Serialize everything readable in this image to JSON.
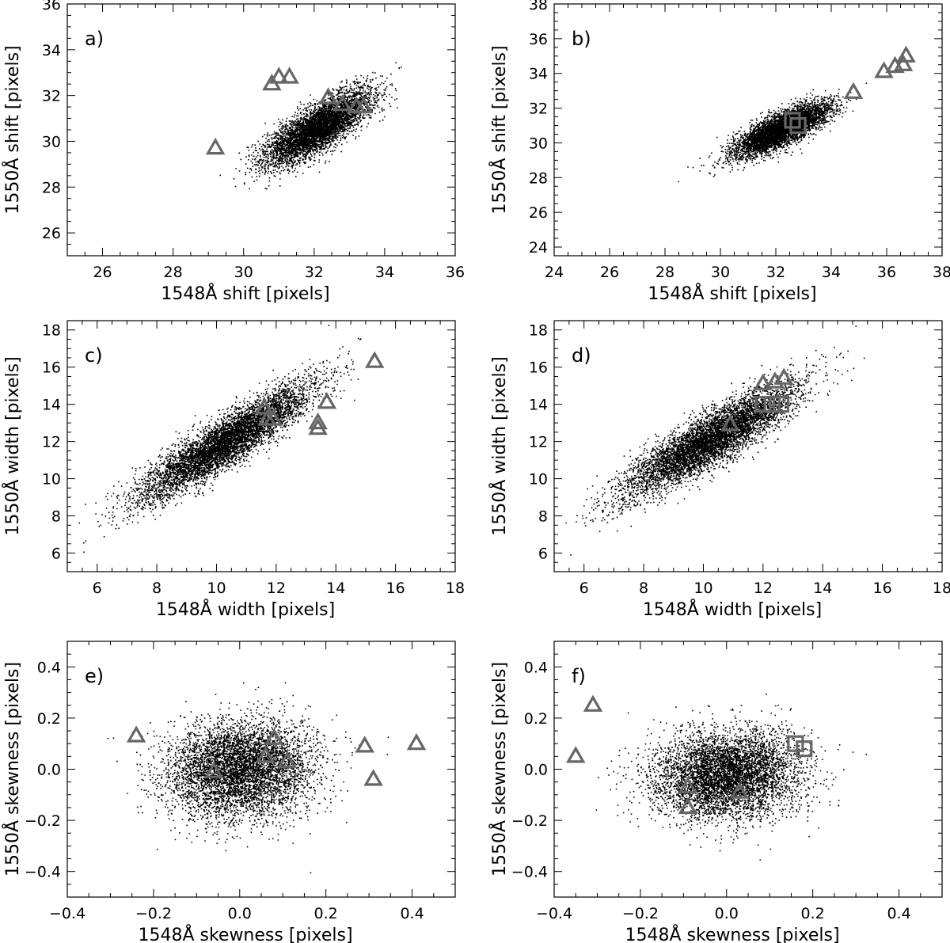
{
  "figure": {
    "panels": [
      {
        "id": "a",
        "label": "a)",
        "type": "scatter",
        "xlabel": "1548Å shift [pixels]",
        "ylabel": "1550Å shift [pixels]",
        "xlim": [
          25,
          36
        ],
        "ylim": [
          25,
          36
        ],
        "xticks": [
          26,
          28,
          30,
          32,
          34,
          36
        ],
        "yticks": [
          26,
          28,
          30,
          32,
          34,
          36
        ],
        "cloud": {
          "n": 5200,
          "cx": 32.1,
          "cy": 30.6,
          "sx": 0.75,
          "sy": 0.8,
          "rho": 0.78,
          "color": "#000000"
        },
        "triangles": [
          [
            29.2,
            29.7
          ],
          [
            30.8,
            32.5
          ],
          [
            31.0,
            32.8
          ],
          [
            31.3,
            32.8
          ],
          [
            32.4,
            31.9
          ],
          [
            32.8,
            31.6
          ],
          [
            33.2,
            31.5
          ],
          [
            33.4,
            31.5
          ]
        ],
        "squares": []
      },
      {
        "id": "b",
        "label": "b)",
        "type": "scatter",
        "xlabel": "1548Å shift [pixels]",
        "ylabel": "1550Å shift [pixels]",
        "xlim": [
          24,
          38
        ],
        "ylim": [
          23.5,
          38
        ],
        "xticks": [
          24,
          26,
          28,
          30,
          32,
          34,
          36,
          38
        ],
        "yticks": [
          24,
          26,
          28,
          30,
          32,
          34,
          36,
          38
        ],
        "cloud": {
          "n": 5200,
          "cx": 32.2,
          "cy": 30.8,
          "sx": 0.85,
          "sy": 0.75,
          "rho": 0.78,
          "color": "#000000"
        },
        "triangles": [
          [
            34.8,
            32.9
          ],
          [
            35.9,
            34.1
          ],
          [
            36.3,
            34.4
          ],
          [
            36.6,
            34.5
          ],
          [
            36.7,
            35.0
          ]
        ],
        "squares": [
          [
            32.6,
            31.3
          ],
          [
            32.8,
            31.0
          ]
        ]
      },
      {
        "id": "c",
        "label": "c)",
        "type": "scatter",
        "xlabel": "1548Å width [pixels]",
        "ylabel": "1550Å width [pixels]",
        "xlim": [
          5,
          18
        ],
        "ylim": [
          5,
          18.5
        ],
        "xticks": [
          6,
          8,
          10,
          12,
          14,
          16,
          18
        ],
        "yticks": [
          6,
          8,
          10,
          12,
          14,
          16,
          18
        ],
        "cloud": {
          "n": 6000,
          "cx": 10.3,
          "cy": 12.0,
          "sx": 1.45,
          "sy": 1.55,
          "rho": 0.9,
          "color": "#000000"
        },
        "triangles": [
          [
            11.6,
            13.8
          ],
          [
            11.7,
            13.2
          ],
          [
            11.9,
            13.2
          ],
          [
            13.4,
            13.0
          ],
          [
            13.4,
            12.7
          ],
          [
            13.7,
            14.1
          ],
          [
            15.3,
            16.3
          ]
        ],
        "squares": []
      },
      {
        "id": "d",
        "label": "d)",
        "type": "scatter",
        "xlabel": "1548Å width [pixels]",
        "ylabel": "1550Å width [pixels]",
        "xlim": [
          5,
          18
        ],
        "ylim": [
          5,
          18.5
        ],
        "xticks": [
          6,
          8,
          10,
          12,
          14,
          16,
          18
        ],
        "yticks": [
          6,
          8,
          10,
          12,
          14,
          16,
          18
        ],
        "cloud": {
          "n": 6000,
          "cx": 10.2,
          "cy": 12.1,
          "sx": 1.45,
          "sy": 1.5,
          "rho": 0.88,
          "color": "#000000"
        },
        "triangles": [
          [
            10.9,
            12.9
          ],
          [
            12.0,
            15.1
          ],
          [
            12.4,
            15.2
          ],
          [
            12.7,
            15.4
          ]
        ],
        "squares": [
          [
            12.0,
            14.0
          ],
          [
            12.3,
            14.0
          ],
          [
            12.6,
            14.0
          ]
        ]
      },
      {
        "id": "e",
        "label": "e)",
        "type": "scatter",
        "xlabel": "1548Å skewness [pixels]",
        "ylabel": "1550Å skewness [pixels]",
        "xlim": [
          -0.4,
          0.5
        ],
        "ylim": [
          -0.5,
          0.5
        ],
        "xticks": [
          -0.4,
          -0.2,
          0.0,
          0.2,
          0.4
        ],
        "yticks": [
          -0.4,
          -0.2,
          0.0,
          0.2,
          0.4
        ],
        "cloud": {
          "n": 5500,
          "cx": 0.0,
          "cy": 0.0,
          "sx": 0.085,
          "sy": 0.095,
          "rho": 0.1,
          "color": "#000000"
        },
        "triangles": [
          [
            -0.24,
            0.13
          ],
          [
            -0.06,
            -0.01
          ],
          [
            0.06,
            0.05
          ],
          [
            0.08,
            0.12
          ],
          [
            0.11,
            0.03
          ],
          [
            0.29,
            0.09
          ],
          [
            0.31,
            -0.04
          ],
          [
            0.41,
            0.1
          ]
        ],
        "squares": []
      },
      {
        "id": "f",
        "label": "f)",
        "type": "scatter",
        "xlabel": "1548Å skewness [pixels]",
        "ylabel": "1550Å skewness [pixels]",
        "xlim": [
          -0.4,
          0.5
        ],
        "ylim": [
          -0.5,
          0.5
        ],
        "xticks": [
          -0.4,
          -0.2,
          0.0,
          0.2,
          0.4
        ],
        "yticks": [
          -0.4,
          -0.2,
          0.0,
          0.2,
          0.4
        ],
        "cloud": {
          "n": 5500,
          "cx": 0.0,
          "cy": -0.02,
          "sx": 0.085,
          "sy": 0.085,
          "rho": 0.1,
          "color": "#000000"
        },
        "triangles": [
          [
            -0.35,
            0.05
          ],
          [
            -0.31,
            0.25
          ],
          [
            -0.09,
            -0.07
          ],
          [
            -0.09,
            -0.15
          ],
          [
            0.03,
            -0.09
          ]
        ],
        "squares": [
          [
            0.16,
            0.1
          ],
          [
            0.18,
            0.08
          ]
        ]
      }
    ],
    "marker_color": "#666666"
  }
}
